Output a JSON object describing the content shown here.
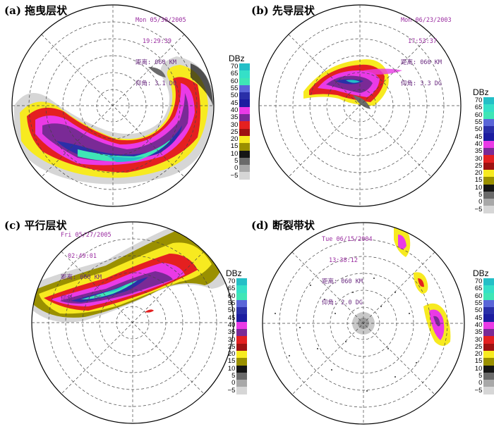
{
  "legend": {
    "unit": "DBz",
    "levels": [
      {
        "label": "70",
        "color": "#24bfc7"
      },
      {
        "label": "65",
        "color": "#35e0c8"
      },
      {
        "label": "60",
        "color": "#3fe6b6"
      },
      {
        "label": "55",
        "color": "#5a66d8"
      },
      {
        "label": "50",
        "color": "#2a2fa8"
      },
      {
        "label": "45",
        "color": "#1c1ca0"
      },
      {
        "label": "40",
        "color": "#ea3ae6"
      },
      {
        "label": "35",
        "color": "#7a2a96"
      },
      {
        "label": "30",
        "color": "#e42020"
      },
      {
        "label": "25",
        "color": "#9e1212"
      },
      {
        "label": "20",
        "color": "#f7ea20"
      },
      {
        "label": "15",
        "color": "#9a9000"
      },
      {
        "label": "10",
        "color": "#151515"
      },
      {
        "label": "5",
        "color": "#6a6a6a"
      },
      {
        "label": "0",
        "color": "#a8a8a8"
      },
      {
        "label": "−5",
        "color": "#d6d6d6"
      }
    ]
  },
  "panels": [
    {
      "title": "(a) 拖曳层状",
      "date": "Mon 05/30/2005",
      "time": "19:29:39",
      "range": "距离: 060 KM",
      "elev": "仰角: 3.1 DG"
    },
    {
      "title": "(b) 先导层状",
      "date": "Mon 06/23/2003",
      "time": "17:53:37",
      "range": "距离: 060 KM",
      "elev": "仰角: 3.3 DG"
    },
    {
      "title": "(c) 平行层状",
      "date": "Fri 05/27/2005",
      "time": "02:49:01",
      "range": "距离: 060 KM",
      "elev": "仰角: 2.7 DG"
    },
    {
      "title": "(d) 断裂带状",
      "date": "Tue 06/15/2004",
      "time": "13:38:12",
      "range": "距离: 060 KM",
      "elev": "仰角: 2.0 DG"
    }
  ]
}
